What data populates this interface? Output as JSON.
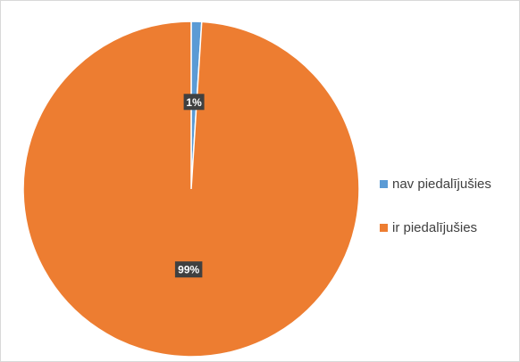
{
  "chart_data": {
    "type": "pie",
    "title": "",
    "categories": [
      "nav piedalījušies",
      "ir piedalījušies"
    ],
    "values": [
      1,
      99
    ],
    "data_labels": [
      "1%",
      "99%"
    ],
    "colors": [
      "#5b9bd5",
      "#ed7d31"
    ],
    "legend_position": "right"
  }
}
